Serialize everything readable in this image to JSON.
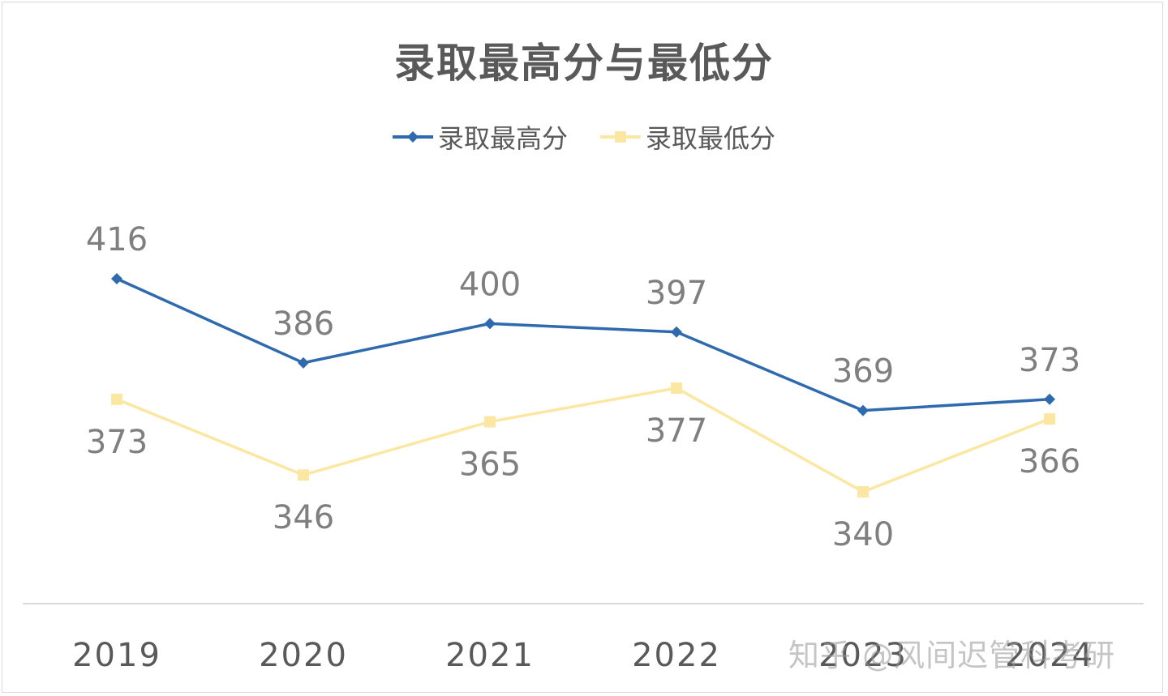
{
  "chart_data": {
    "type": "line",
    "title": "录取最高分与最低分",
    "categories": [
      "2019",
      "2020",
      "2021",
      "2022",
      "2023",
      "2024"
    ],
    "series": [
      {
        "name": "录取最高分",
        "values": [
          416,
          386,
          400,
          397,
          369,
          373
        ],
        "color": "#2e6aad",
        "marker": "diamond"
      },
      {
        "name": "录取最低分",
        "values": [
          373,
          346,
          365,
          377,
          340,
          366
        ],
        "color": "#fbe7a1",
        "marker": "square"
      }
    ],
    "data_labels": true,
    "legend": "top",
    "grid": false
  },
  "watermark": "知乎 @风间迟管科考研"
}
